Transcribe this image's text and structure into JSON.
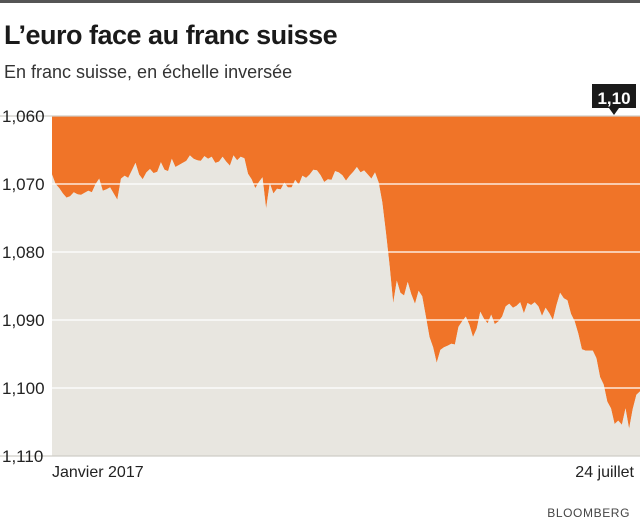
{
  "title": "L’euro face au franc suisse",
  "subtitle": "En franc suisse, en échelle inversée",
  "source": "BLOOMBERG",
  "colors": {
    "area": "#f07428",
    "plot_background": "#e8e6e0",
    "grid": "#ffffff",
    "badge": "#1a1a1a"
  },
  "chart_data": {
    "type": "area",
    "title": "L’euro face au franc suisse",
    "subtitle": "En franc suisse, en échelle inversée",
    "y_axis": {
      "inverted": true,
      "ylim": [
        1.06,
        1.11
      ],
      "ticks": [
        1.06,
        1.07,
        1.08,
        1.09,
        1.1,
        1.11
      ],
      "tick_labels": [
        "1,060",
        "1,070",
        "1,080",
        "1,090",
        "1,100",
        "1,110"
      ]
    },
    "x_axis": {
      "start_label": "Janvier 2017",
      "end_label": "24 juillet"
    },
    "grid": true,
    "last_value_label": "1,10",
    "last_value": 1.1,
    "series": [
      {
        "values": [
          1.0686,
          1.07,
          1.0706,
          1.0714,
          1.072,
          1.0718,
          1.0712,
          1.0715,
          1.0716,
          1.0713,
          1.071,
          1.0712,
          1.07,
          1.0692,
          1.071,
          1.0708,
          1.0705,
          1.0714,
          1.0723,
          1.0692,
          1.0688,
          1.0691,
          1.068,
          1.0669,
          1.0686,
          1.0693,
          1.0683,
          1.0678,
          1.0684,
          1.0682,
          1.0668,
          1.0679,
          1.0681,
          1.0663,
          1.0675,
          1.0672,
          1.0669,
          1.0666,
          1.0658,
          1.0663,
          1.0665,
          1.0666,
          1.0659,
          1.0663,
          1.066,
          1.0669,
          1.0667,
          1.066,
          1.0667,
          1.0673,
          1.0658,
          1.0665,
          1.066,
          1.0662,
          1.0685,
          1.0693,
          1.0706,
          1.0697,
          1.069,
          1.0736,
          1.0699,
          1.0714,
          1.0707,
          1.0708,
          1.0698,
          1.0705,
          1.0705,
          1.0694,
          1.0701,
          1.0688,
          1.0691,
          1.0686,
          1.0679,
          1.068,
          1.0687,
          1.0697,
          1.0693,
          1.0694,
          1.0681,
          1.0683,
          1.0687,
          1.0695,
          1.0688,
          1.0682,
          1.0675,
          1.0683,
          1.068,
          1.0686,
          1.0692,
          1.0683,
          1.0698,
          1.0727,
          1.0771,
          1.082,
          1.0875,
          1.0842,
          1.086,
          1.0864,
          1.0844,
          1.0862,
          1.0876,
          1.0857,
          1.0865,
          1.0895,
          1.0925,
          1.094,
          1.0963,
          1.0944,
          1.094,
          1.0938,
          1.0935,
          1.0936,
          1.091,
          1.0902,
          1.0895,
          1.0907,
          1.0925,
          1.0913,
          1.0888,
          1.0898,
          1.0905,
          1.0892,
          1.0906,
          1.0902,
          1.0895,
          1.088,
          1.0876,
          1.0882,
          1.0879,
          1.0874,
          1.089,
          1.0875,
          1.0878,
          1.0874,
          1.088,
          1.0894,
          1.0882,
          1.089,
          1.09,
          1.0878,
          1.086,
          1.0868,
          1.0871,
          1.0891,
          1.0902,
          1.092,
          1.0943,
          1.0945,
          1.0945,
          1.0945,
          1.0956,
          1.0984,
          1.0995,
          1.102,
          1.103,
          1.1053,
          1.1048,
          1.1054,
          1.103,
          1.106,
          1.1031,
          1.101,
          1.1005
        ]
      }
    ]
  }
}
